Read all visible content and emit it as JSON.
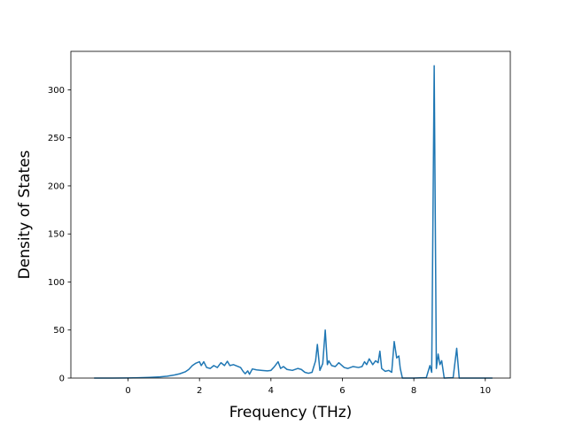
{
  "chart_data": {
    "type": "line",
    "title": "",
    "xlabel": "Frequency (THz)",
    "ylabel": "Density of States",
    "xlim": [
      -1.6,
      10.7
    ],
    "ylim": [
      0,
      340
    ],
    "x_ticks": [
      0,
      2,
      4,
      6,
      8,
      10
    ],
    "y_ticks": [
      0,
      50,
      100,
      150,
      200,
      250,
      300
    ],
    "x_tick_labels": [
      "0",
      "2",
      "4",
      "6",
      "8",
      "10"
    ],
    "y_tick_labels": [
      "0",
      "50",
      "100",
      "150",
      "200",
      "250",
      "300"
    ],
    "grid": false,
    "legend": "none",
    "series": [
      {
        "color": "#1f77b4",
        "points": [
          [
            -0.95,
            0
          ],
          [
            -0.5,
            0
          ],
          [
            0.0,
            0.1
          ],
          [
            0.3,
            0.3
          ],
          [
            0.6,
            0.7
          ],
          [
            0.9,
            1.3
          ],
          [
            1.1,
            2.0
          ],
          [
            1.3,
            3.2
          ],
          [
            1.45,
            4.5
          ],
          [
            1.6,
            6.5
          ],
          [
            1.7,
            9.0
          ],
          [
            1.8,
            13.0
          ],
          [
            1.9,
            15.5
          ],
          [
            2.0,
            17.0
          ],
          [
            2.05,
            13.0
          ],
          [
            2.12,
            17.0
          ],
          [
            2.2,
            11.0
          ],
          [
            2.3,
            10.0
          ],
          [
            2.4,
            13.0
          ],
          [
            2.5,
            11.0
          ],
          [
            2.6,
            16.0
          ],
          [
            2.7,
            13.0
          ],
          [
            2.78,
            17.5
          ],
          [
            2.85,
            13.0
          ],
          [
            2.95,
            14.0
          ],
          [
            3.05,
            12.5
          ],
          [
            3.15,
            11.0
          ],
          [
            3.22,
            7.0
          ],
          [
            3.28,
            4.5
          ],
          [
            3.35,
            7.5
          ],
          [
            3.4,
            4.0
          ],
          [
            3.48,
            9.5
          ],
          [
            3.6,
            8.5
          ],
          [
            3.75,
            8.0
          ],
          [
            3.9,
            7.5
          ],
          [
            4.0,
            8.0
          ],
          [
            4.1,
            12.0
          ],
          [
            4.2,
            17.0
          ],
          [
            4.27,
            10.0
          ],
          [
            4.35,
            12.0
          ],
          [
            4.45,
            9.0
          ],
          [
            4.6,
            8.0
          ],
          [
            4.75,
            10.0
          ],
          [
            4.85,
            9.0
          ],
          [
            4.95,
            6.0
          ],
          [
            5.05,
            5.0
          ],
          [
            5.15,
            6.0
          ],
          [
            5.25,
            18.0
          ],
          [
            5.3,
            35.0
          ],
          [
            5.37,
            8.0
          ],
          [
            5.45,
            15.0
          ],
          [
            5.52,
            50.0
          ],
          [
            5.58,
            14.0
          ],
          [
            5.62,
            18.0
          ],
          [
            5.7,
            13.0
          ],
          [
            5.8,
            12.0
          ],
          [
            5.9,
            16.0
          ],
          [
            5.96,
            14.0
          ],
          [
            6.05,
            11.0
          ],
          [
            6.15,
            10.0
          ],
          [
            6.3,
            12.0
          ],
          [
            6.45,
            11.0
          ],
          [
            6.55,
            12.0
          ],
          [
            6.62,
            17.0
          ],
          [
            6.68,
            14.0
          ],
          [
            6.75,
            20.0
          ],
          [
            6.85,
            14.0
          ],
          [
            6.93,
            18.0
          ],
          [
            7.0,
            16.0
          ],
          [
            7.05,
            28.0
          ],
          [
            7.1,
            10.0
          ],
          [
            7.2,
            7.0
          ],
          [
            7.3,
            8.0
          ],
          [
            7.38,
            6.0
          ],
          [
            7.45,
            38.0
          ],
          [
            7.52,
            21.0
          ],
          [
            7.58,
            23.0
          ],
          [
            7.62,
            10.0
          ],
          [
            7.68,
            0
          ],
          [
            8.0,
            0
          ],
          [
            8.35,
            0.5
          ],
          [
            8.45,
            13.0
          ],
          [
            8.5,
            6.0
          ],
          [
            8.57,
            325.0
          ],
          [
            8.63,
            10.0
          ],
          [
            8.68,
            25.0
          ],
          [
            8.73,
            14.0
          ],
          [
            8.78,
            18.0
          ],
          [
            8.85,
            0
          ],
          [
            9.1,
            0.5
          ],
          [
            9.2,
            31.0
          ],
          [
            9.27,
            0
          ],
          [
            9.5,
            0
          ],
          [
            10.0,
            0
          ],
          [
            10.2,
            0
          ]
        ]
      }
    ]
  }
}
